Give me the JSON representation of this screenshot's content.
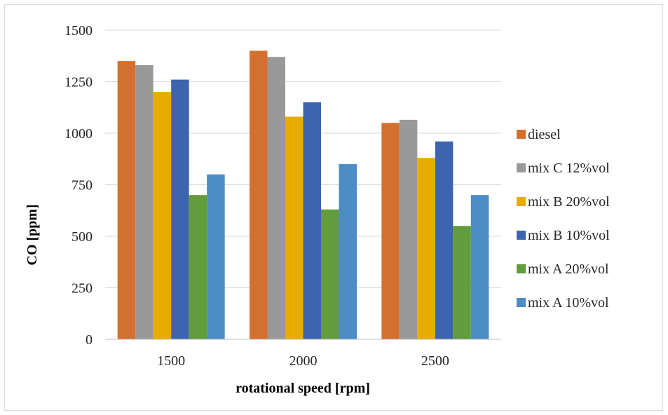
{
  "chart_data": {
    "type": "bar",
    "title": "",
    "xlabel": "rotational speed [rpm]",
    "ylabel": "CO [ppm]",
    "categories": [
      "1500",
      "2000",
      "2500"
    ],
    "ylim": [
      0,
      1500
    ],
    "yticks": [
      "0",
      "250",
      "500",
      "750",
      "1000",
      "1250",
      "1500"
    ],
    "grid": true,
    "legend_position": "right",
    "series": [
      {
        "name": "diesel",
        "color": "#d4702f",
        "values": [
          1350,
          1400,
          1050
        ]
      },
      {
        "name": "mix C 12%vol",
        "color": "#999999",
        "values": [
          1330,
          1370,
          1065
        ]
      },
      {
        "name": "mix B 20%vol",
        "color": "#e6ac00",
        "values": [
          1200,
          1080,
          880
        ]
      },
      {
        "name": "mix B 10%vol",
        "color": "#3d64ae",
        "values": [
          1260,
          1150,
          960
        ]
      },
      {
        "name": "mix A 20%vol",
        "color": "#629c3e",
        "values": [
          700,
          630,
          550
        ]
      },
      {
        "name": "mix A 10%vol",
        "color": "#4d8cc4",
        "values": [
          800,
          850,
          700
        ]
      }
    ]
  }
}
